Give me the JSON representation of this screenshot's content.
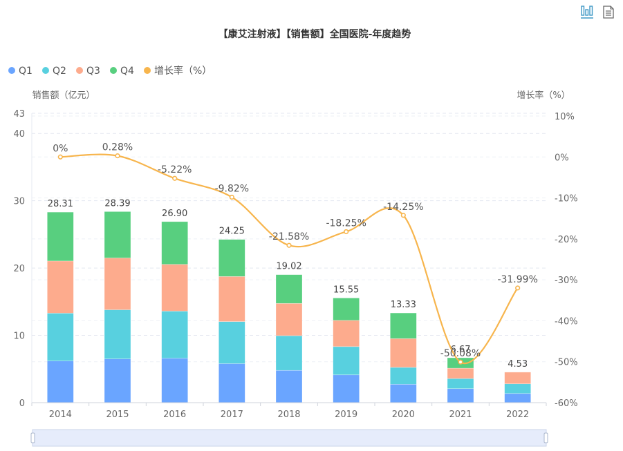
{
  "toolbox": {
    "items": [
      {
        "icon": "bar-chart-icon",
        "label": "切换为柱状图",
        "active": true
      },
      {
        "icon": "data-view-icon",
        "label": "数据视图",
        "active": false
      }
    ]
  },
  "colors": {
    "Q1": "#6aa5ff",
    "Q2": "#58d0df",
    "Q3": "#fdab8d",
    "Q4": "#58cf7f",
    "growth": "#f7b54d",
    "title": "#333333",
    "axis_text": "#666666",
    "grid": "#e3e7f0",
    "slider_fill": "#e6ecfb",
    "slider_border": "#c9d3ea"
  },
  "chart_data": {
    "type": "bar",
    "stacked": true,
    "title": "【康艾注射液】【销售额】全国医院-年度趋势",
    "xlabel": "",
    "ylabel": "销售额（亿元）",
    "y2label": "增长率（%）",
    "categories": [
      "2014",
      "2015",
      "2016",
      "2017",
      "2018",
      "2019",
      "2020",
      "2021",
      "2022"
    ],
    "series": [
      {
        "name": "Q1",
        "type": "bar",
        "values": [
          6.2,
          6.5,
          6.6,
          5.8,
          4.8,
          4.13,
          2.74,
          2.08,
          1.36
        ]
      },
      {
        "name": "Q2",
        "type": "bar",
        "values": [
          7.1,
          7.3,
          7.0,
          6.25,
          5.15,
          4.2,
          2.5,
          1.5,
          1.44
        ]
      },
      {
        "name": "Q3",
        "type": "bar",
        "values": [
          7.75,
          7.7,
          6.95,
          6.7,
          4.8,
          3.9,
          4.28,
          1.54,
          1.73
        ]
      },
      {
        "name": "Q4",
        "type": "bar",
        "values": [
          7.26,
          6.89,
          6.35,
          5.5,
          4.27,
          3.32,
          3.81,
          1.55,
          0
        ]
      },
      {
        "name": "增长率（%）",
        "type": "line",
        "axis": "right",
        "values": [
          0,
          0.28,
          -5.22,
          -9.82,
          -21.58,
          -18.25,
          -14.25,
          -50.08,
          -31.99
        ]
      }
    ],
    "totals": [
      28.31,
      28.39,
      26.9,
      24.25,
      19.02,
      15.55,
      13.33,
      6.67,
      4.53
    ],
    "total_labels": [
      "28.31",
      "28.39",
      "26.90",
      "24.25",
      "19.02",
      "15.55",
      "13.33",
      "6.67",
      "4.53"
    ],
    "growth_labels": [
      "0%",
      "0.28%",
      "-5.22%",
      "-9.82%",
      "-21.58%",
      "-18.25%",
      "-14.25%",
      "-50.08%",
      "-31.99%"
    ],
    "ylim": [
      0,
      43
    ],
    "yticks": [
      0,
      10,
      20,
      30,
      40,
      43
    ],
    "ytick_labels": [
      "0",
      "10",
      "20",
      "30",
      "40",
      "43"
    ],
    "y2lim": [
      -60,
      10
    ],
    "y2ticks": [
      10,
      0,
      -10,
      -20,
      -30,
      -40,
      -50,
      -60
    ],
    "y2tick_labels": [
      "10%",
      "0%",
      "-10%",
      "-20%",
      "-30%",
      "-40%",
      "-50%",
      "-60%"
    ],
    "legend": {
      "position": "top-left",
      "entries": [
        "Q1",
        "Q2",
        "Q3",
        "Q4",
        "增长率（%）"
      ]
    },
    "grid": true,
    "data_zoom": {
      "start_percent": 0,
      "end_percent": 100
    }
  }
}
